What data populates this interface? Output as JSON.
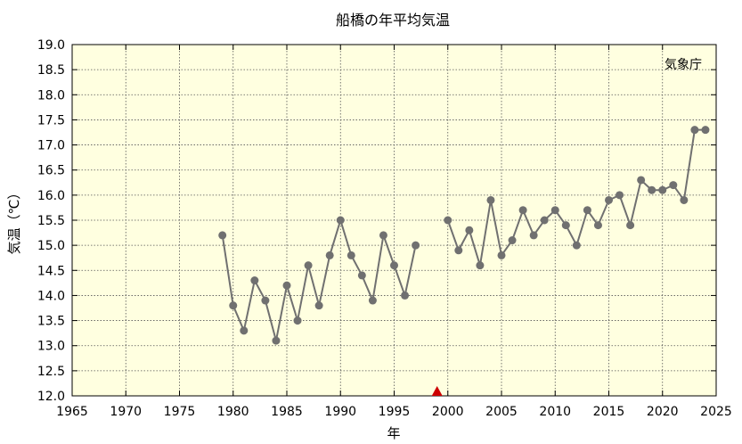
{
  "chart_data": {
    "type": "line",
    "title": "船橋の年平均気温",
    "xlabel": "年",
    "ylabel": "気温（℃）",
    "credit": "気象庁",
    "xlim": [
      1965,
      2025
    ],
    "ylim": [
      12.0,
      19.0
    ],
    "xticks": [
      1965,
      1970,
      1975,
      1980,
      1985,
      1990,
      1995,
      2000,
      2005,
      2010,
      2015,
      2020,
      2025
    ],
    "yticks": [
      "12.0",
      "12.5",
      "13.0",
      "13.5",
      "14.0",
      "14.5",
      "15.0",
      "15.5",
      "16.0",
      "16.5",
      "17.0",
      "17.5",
      "18.0",
      "18.5",
      "19.0"
    ],
    "grid": true,
    "colors": {
      "plot_bg": "#ffffe0",
      "line": "#707070",
      "marker": "#707070",
      "event_marker": "#cc0000"
    },
    "event_marker": {
      "x": 1999,
      "shape": "triangle"
    },
    "segments": [
      [
        {
          "x": 1979,
          "y": 15.2
        },
        {
          "x": 1980,
          "y": 13.8
        },
        {
          "x": 1981,
          "y": 13.3
        },
        {
          "x": 1982,
          "y": 14.3
        },
        {
          "x": 1983,
          "y": 13.9
        },
        {
          "x": 1984,
          "y": 13.1
        },
        {
          "x": 1985,
          "y": 14.2
        },
        {
          "x": 1986,
          "y": 13.5
        },
        {
          "x": 1987,
          "y": 14.6
        },
        {
          "x": 1988,
          "y": 13.8
        },
        {
          "x": 1989,
          "y": 14.8
        },
        {
          "x": 1990,
          "y": 15.5
        },
        {
          "x": 1991,
          "y": 14.8
        },
        {
          "x": 1992,
          "y": 14.4
        },
        {
          "x": 1993,
          "y": 13.9
        },
        {
          "x": 1994,
          "y": 15.2
        },
        {
          "x": 1995,
          "y": 14.6
        },
        {
          "x": 1996,
          "y": 14.0
        },
        {
          "x": 1997,
          "y": 15.0
        }
      ],
      [
        {
          "x": 2000,
          "y": 15.5
        },
        {
          "x": 2001,
          "y": 14.9
        },
        {
          "x": 2002,
          "y": 15.3
        },
        {
          "x": 2003,
          "y": 14.6
        },
        {
          "x": 2004,
          "y": 15.9
        },
        {
          "x": 2005,
          "y": 14.8
        },
        {
          "x": 2006,
          "y": 15.1
        },
        {
          "x": 2007,
          "y": 15.7
        },
        {
          "x": 2008,
          "y": 15.2
        },
        {
          "x": 2009,
          "y": 15.5
        },
        {
          "x": 2010,
          "y": 15.7
        },
        {
          "x": 2011,
          "y": 15.4
        },
        {
          "x": 2012,
          "y": 15.0
        },
        {
          "x": 2013,
          "y": 15.7
        },
        {
          "x": 2014,
          "y": 15.4
        },
        {
          "x": 2015,
          "y": 15.9
        },
        {
          "x": 2016,
          "y": 16.0
        },
        {
          "x": 2017,
          "y": 15.4
        },
        {
          "x": 2018,
          "y": 16.3
        },
        {
          "x": 2019,
          "y": 16.1
        },
        {
          "x": 2020,
          "y": 16.1
        },
        {
          "x": 2021,
          "y": 16.2
        },
        {
          "x": 2022,
          "y": 15.9
        },
        {
          "x": 2023,
          "y": 17.3
        },
        {
          "x": 2024,
          "y": 17.3
        }
      ]
    ]
  }
}
